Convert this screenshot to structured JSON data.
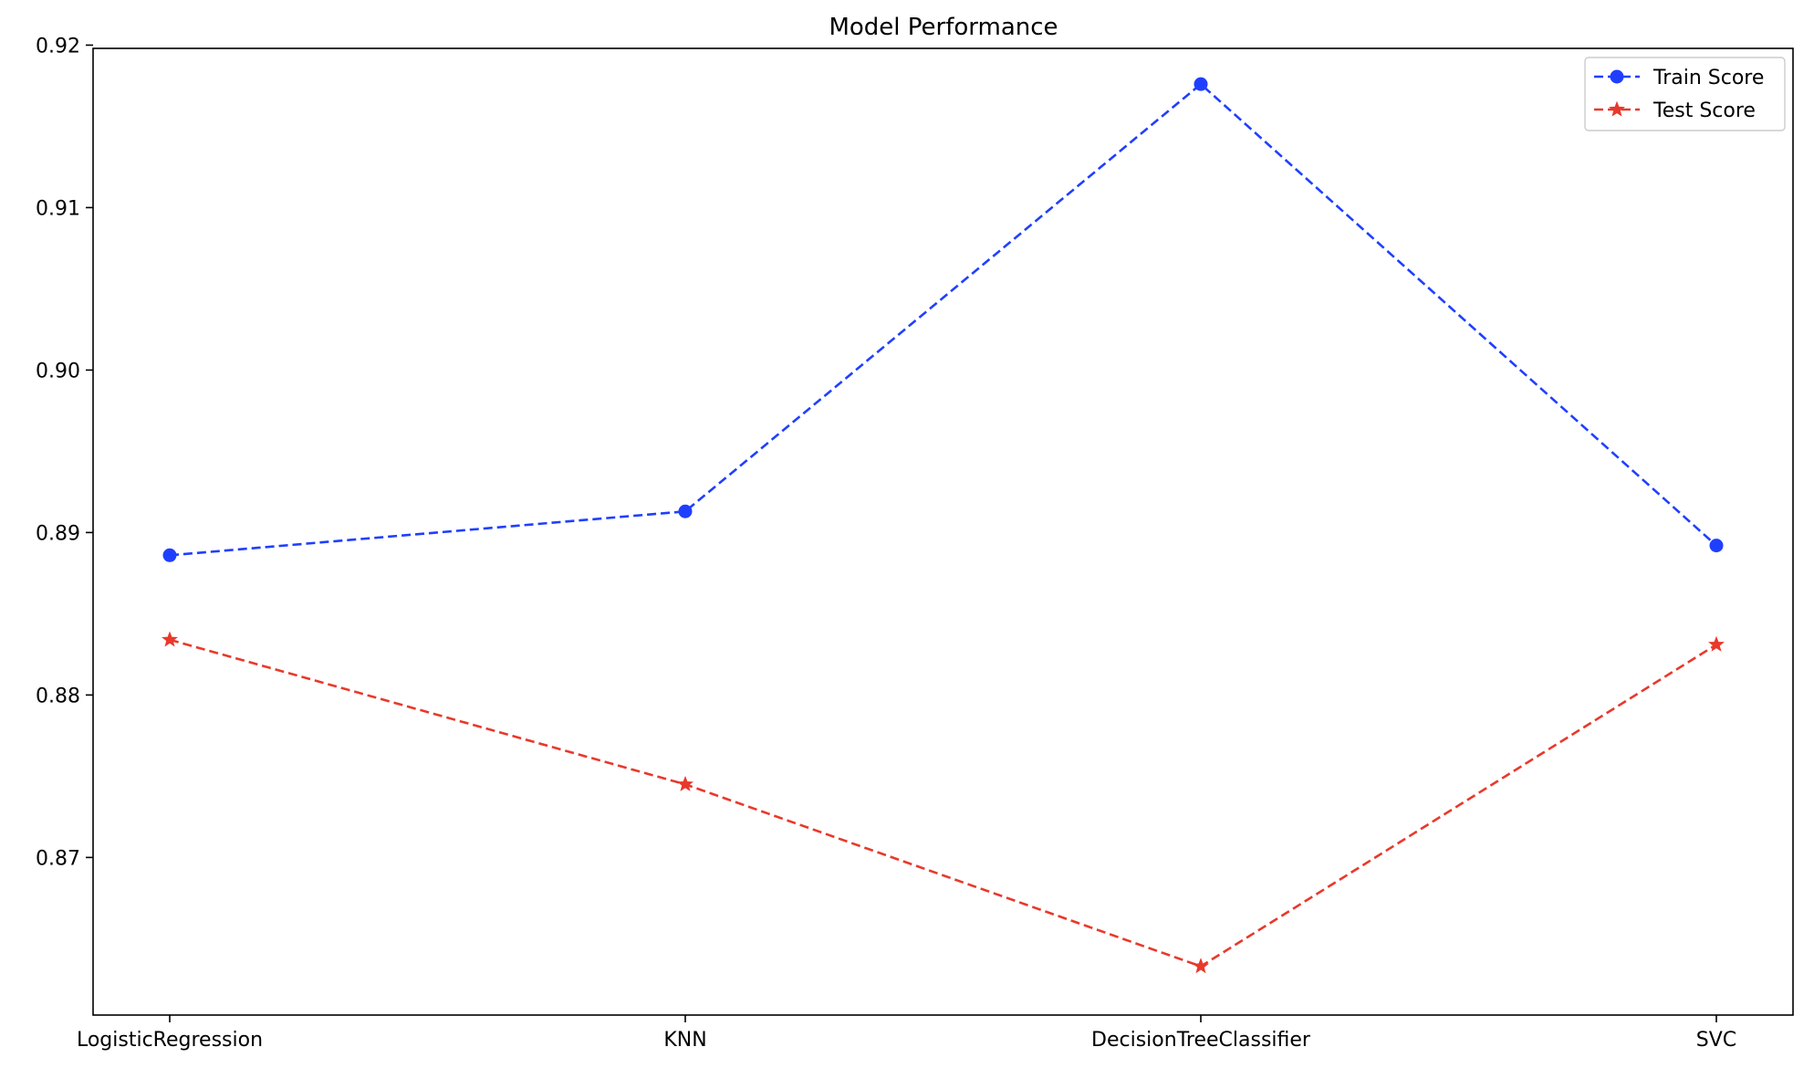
{
  "chart_data": {
    "type": "line",
    "title": "Model Performance",
    "xlabel": "",
    "ylabel": "",
    "categories": [
      "LogisticRegression",
      "KNN",
      "DecisionTreeClassifier",
      "SVC"
    ],
    "ylim": [
      0.8603,
      0.9198
    ],
    "yticks": [
      0.87,
      0.88,
      0.89,
      0.9,
      0.91,
      0.92
    ],
    "ytick_labels": [
      "0.87",
      "0.88",
      "0.89",
      "0.90",
      "0.91",
      "0.92"
    ],
    "grid": false,
    "legend_position": "top-right",
    "series": [
      {
        "name": "Train Score",
        "values": [
          0.8886,
          0.8913,
          0.9176,
          0.8892
        ],
        "color": "#1f3fff",
        "marker": "circle",
        "linestyle": "dashed"
      },
      {
        "name": "Test Score",
        "values": [
          0.8834,
          0.8745,
          0.8633,
          0.8831
        ],
        "color": "#e8392b",
        "marker": "star",
        "linestyle": "dashed"
      }
    ]
  }
}
